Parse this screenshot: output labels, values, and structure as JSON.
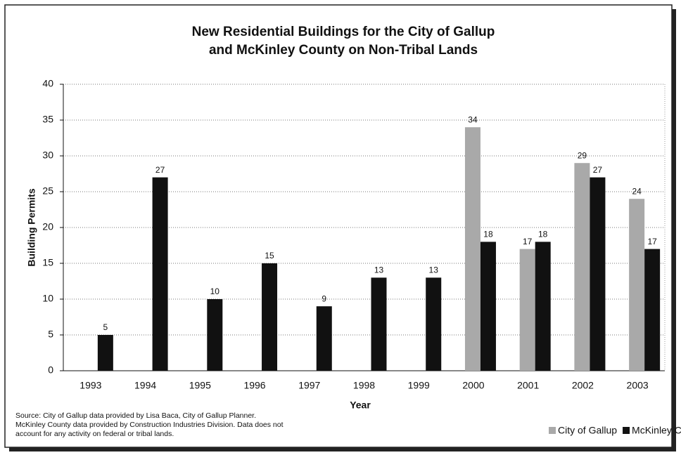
{
  "chart_data": {
    "type": "bar",
    "title": [
      "New Residential Buildings for the City of Gallup",
      "and McKinley County on Non-Tribal Lands"
    ],
    "x_label": "Year",
    "y_label": "Building Permits",
    "categories": [
      "1993",
      "1994",
      "1995",
      "1996",
      "1997",
      "1998",
      "1999",
      "2000",
      "2001",
      "2002",
      "2003"
    ],
    "series": [
      {
        "name": "City of Gallup",
        "color": "#a9a9a9",
        "values": [
          null,
          null,
          null,
          null,
          null,
          null,
          null,
          34,
          17,
          29,
          24
        ]
      },
      {
        "name": "McKinley County",
        "color": "#111111",
        "values": [
          5,
          27,
          10,
          15,
          9,
          13,
          13,
          18,
          18,
          27,
          17
        ]
      }
    ],
    "ylim": [
      0,
      40
    ],
    "yticks": [
      0,
      5,
      10,
      15,
      20,
      25,
      30,
      35,
      40
    ],
    "grid": true,
    "legend": "bottom-right",
    "source": [
      "Source: City of Gallup data provided by Lisa Baca, City of Gallup Planner.",
      "McKinley County data provided by Construction Industries Division.  Data does not",
      "account for any activity on federal or tribal lands."
    ]
  }
}
